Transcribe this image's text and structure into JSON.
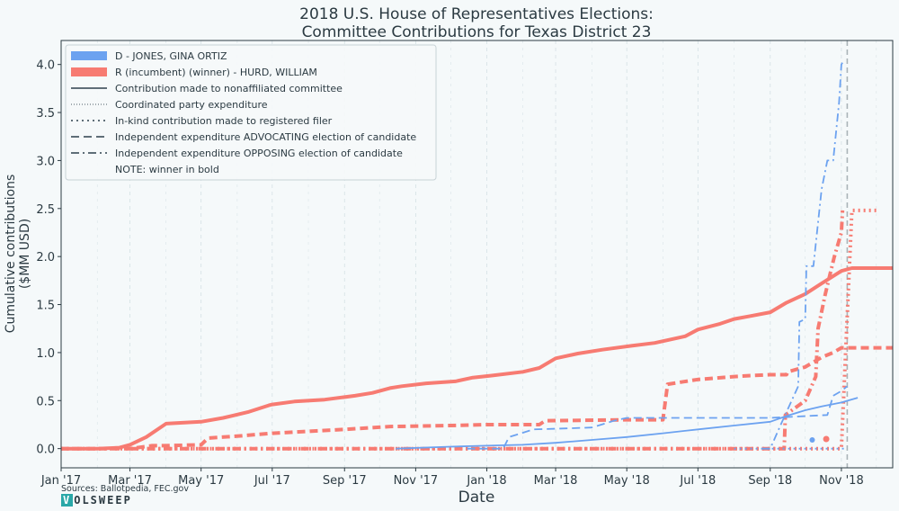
{
  "chart_data": {
    "type": "line",
    "title": [
      "2018 U.S. House of Representatives Elections:",
      "Committee Contributions for Texas District 23"
    ],
    "xlabel": "Date",
    "ylabel": [
      "Cumulative contributions",
      "($MM USD)"
    ],
    "ylim": [
      -0.2,
      4.25
    ],
    "yticks": [
      "0.0",
      "0.5",
      "1.0",
      "1.5",
      "2.0",
      "2.5",
      "3.0",
      "3.5",
      "4.0"
    ],
    "xlim": [
      "2017-01-01",
      "2018-12-15"
    ],
    "xticks": [
      {
        "date": "2017-01-01",
        "label": "Jan '17"
      },
      {
        "date": "2017-03-01",
        "label": "Mar '17"
      },
      {
        "date": "2017-05-01",
        "label": "May '17"
      },
      {
        "date": "2017-07-01",
        "label": "Jul '17"
      },
      {
        "date": "2017-09-01",
        "label": "Sep '17"
      },
      {
        "date": "2017-11-01",
        "label": "Nov '17"
      },
      {
        "date": "2018-01-01",
        "label": "Jan '18"
      },
      {
        "date": "2018-03-01",
        "label": "Mar '18"
      },
      {
        "date": "2018-05-01",
        "label": "May '18"
      },
      {
        "date": "2018-07-01",
        "label": "Jul '18"
      },
      {
        "date": "2018-09-01",
        "label": "Sep '18"
      },
      {
        "date": "2018-11-01",
        "label": "Nov '18"
      }
    ],
    "election_day": "2018-11-06",
    "grid": true,
    "legend_position": "top-left",
    "legend": [
      {
        "label": "D - JONES, GINA ORTIZ",
        "kind": "patch",
        "color": "#6ca2f0"
      },
      {
        "label": "R (incumbent) (winner) - HURD, WILLIAM",
        "kind": "patch",
        "color": "#f77b72"
      },
      {
        "label": "Contribution made to nonaffiliated committee",
        "kind": "line",
        "dash": "solid"
      },
      {
        "label": "Coordinated party expenditure",
        "kind": "line",
        "dash": "dotted-fine"
      },
      {
        "label": "In-kind contribution made to registered filer",
        "kind": "line",
        "dash": "dotted"
      },
      {
        "label": "Independent expenditure ADVOCATING election of candidate",
        "kind": "line",
        "dash": "dashed"
      },
      {
        "label": "Independent expenditure OPPOSING election of candidate",
        "kind": "line",
        "dash": "dashdot"
      },
      {
        "label": "NOTE: winner in bold",
        "kind": "text"
      }
    ],
    "colors": {
      "D": "#6ca2f0",
      "R": "#f77b72",
      "axis": "#2b3a42",
      "grid": "#d4e0e4",
      "election": "#aab4b8"
    },
    "series": [
      {
        "candidate": "R",
        "category": "Contribution made to nonaffiliated committee",
        "dash": "solid",
        "bold": true,
        "x": [
          "2017-01-01",
          "2017-02-01",
          "2017-02-20",
          "2017-03-01",
          "2017-03-15",
          "2017-04-01",
          "2017-05-01",
          "2017-05-20",
          "2017-06-10",
          "2017-06-28",
          "2017-07-01",
          "2017-07-20",
          "2017-08-15",
          "2017-09-10",
          "2017-09-25",
          "2017-10-10",
          "2017-10-20",
          "2017-11-10",
          "2017-12-05",
          "2017-12-20",
          "2018-01-05",
          "2018-02-01",
          "2018-02-15",
          "2018-03-01",
          "2018-03-20",
          "2018-04-10",
          "2018-05-05",
          "2018-05-25",
          "2018-06-20",
          "2018-07-01",
          "2018-07-20",
          "2018-08-01",
          "2018-08-15",
          "2018-09-01",
          "2018-09-15",
          "2018-10-01",
          "2018-10-15",
          "2018-11-01",
          "2018-11-10",
          "2018-12-15"
        ],
        "y": [
          0.0,
          0.0,
          0.01,
          0.04,
          0.12,
          0.26,
          0.28,
          0.32,
          0.38,
          0.45,
          0.46,
          0.49,
          0.51,
          0.55,
          0.58,
          0.63,
          0.65,
          0.68,
          0.7,
          0.74,
          0.76,
          0.8,
          0.84,
          0.94,
          0.99,
          1.03,
          1.07,
          1.1,
          1.17,
          1.24,
          1.3,
          1.35,
          1.38,
          1.42,
          1.52,
          1.61,
          1.72,
          1.85,
          1.88,
          1.88
        ]
      },
      {
        "candidate": "R",
        "category": "Independent expenditure ADVOCATING election of candidate",
        "dash": "dashed",
        "bold": true,
        "x": [
          "2017-01-01",
          "2017-03-01",
          "2017-03-20",
          "2017-04-01",
          "2017-05-01",
          "2017-05-07",
          "2017-06-01",
          "2017-07-01",
          "2017-09-01",
          "2017-10-10",
          "2017-12-01",
          "2018-01-01",
          "2018-02-15",
          "2018-02-20",
          "2018-05-01",
          "2018-06-01",
          "2018-06-05",
          "2018-07-01",
          "2018-08-01",
          "2018-08-15",
          "2018-09-01",
          "2018-09-15",
          "2018-09-16",
          "2018-10-01",
          "2018-10-15",
          "2018-10-25",
          "2018-11-01",
          "2018-12-15"
        ],
        "y": [
          0.0,
          0.0,
          0.03,
          0.03,
          0.04,
          0.11,
          0.13,
          0.16,
          0.2,
          0.23,
          0.24,
          0.25,
          0.25,
          0.29,
          0.3,
          0.3,
          0.67,
          0.72,
          0.75,
          0.76,
          0.77,
          0.77,
          0.8,
          0.85,
          0.95,
          1.0,
          1.05,
          1.05
        ]
      },
      {
        "candidate": "R",
        "category": "Independent expenditure OPPOSING election of candidate",
        "dash": "dashdot",
        "bold": true,
        "x": [
          "2017-03-01",
          "2018-09-13",
          "2018-09-14",
          "2018-10-01",
          "2018-10-10",
          "2018-10-12",
          "2018-10-18",
          "2018-10-22",
          "2018-10-26",
          "2018-11-01",
          "2018-11-02"
        ],
        "y": [
          0.0,
          0.0,
          0.35,
          0.5,
          0.75,
          1.25,
          1.6,
          1.8,
          2.0,
          2.25,
          2.48
        ]
      },
      {
        "candidate": "R",
        "category": "In-kind contribution made to registered filer",
        "dash": "dotted",
        "bold": true,
        "x": [
          "2017-01-01",
          "2018-10-01",
          "2018-11-01",
          "2018-11-10",
          "2018-12-01"
        ],
        "y": [
          0.0,
          0.0,
          0.0,
          2.48,
          2.48
        ]
      },
      {
        "candidate": "R",
        "category": "Coordinated party expenditure",
        "dash": "dotted-fine",
        "bold": true,
        "x": [
          "2018-10-19"
        ],
        "y": [
          0.1
        ]
      },
      {
        "candidate": "D",
        "category": "Contribution made to nonaffiliated committee",
        "dash": "solid",
        "bold": false,
        "x": [
          "2017-10-15",
          "2017-12-01",
          "2018-01-01",
          "2018-02-01",
          "2018-03-01",
          "2018-04-01",
          "2018-05-01",
          "2018-06-01",
          "2018-07-01",
          "2018-08-01",
          "2018-09-01",
          "2018-09-15",
          "2018-10-01",
          "2018-10-15",
          "2018-11-01",
          "2018-11-15"
        ],
        "y": [
          0.0,
          0.02,
          0.03,
          0.04,
          0.06,
          0.09,
          0.12,
          0.16,
          0.2,
          0.24,
          0.28,
          0.34,
          0.4,
          0.44,
          0.48,
          0.53
        ]
      },
      {
        "candidate": "D",
        "category": "Independent expenditure ADVOCATING election of candidate",
        "dash": "dashed",
        "bold": false,
        "x": [
          "2017-12-15",
          "2018-01-15",
          "2018-01-20",
          "2018-02-10",
          "2018-03-10",
          "2018-04-01",
          "2018-04-20",
          "2018-05-01",
          "2018-06-15",
          "2018-09-01",
          "2018-10-20",
          "2018-10-25",
          "2018-11-01",
          "2018-11-06"
        ],
        "y": [
          0.0,
          0.0,
          0.12,
          0.2,
          0.21,
          0.22,
          0.29,
          0.32,
          0.32,
          0.32,
          0.35,
          0.55,
          0.6,
          0.65
        ]
      },
      {
        "candidate": "D",
        "category": "Independent expenditure OPPOSING election of candidate",
        "dash": "dashdot",
        "bold": false,
        "x": [
          "2018-08-25",
          "2018-09-01",
          "2018-09-10",
          "2018-09-25",
          "2018-09-26",
          "2018-10-01",
          "2018-10-02",
          "2018-10-08",
          "2018-10-15",
          "2018-10-20",
          "2018-10-25",
          "2018-10-30",
          "2018-11-01",
          "2018-11-02"
        ],
        "y": [
          0.0,
          0.0,
          0.25,
          0.65,
          1.32,
          1.35,
          1.9,
          1.9,
          2.7,
          3.0,
          3.0,
          3.6,
          4.0,
          4.02
        ]
      },
      {
        "candidate": "D",
        "category": "Coordinated party expenditure",
        "dash": "dotted-fine",
        "bold": false,
        "x": [
          "2018-10-07"
        ],
        "y": [
          0.09
        ]
      },
      {
        "candidate": "D",
        "category": "In-kind contribution made to registered filer",
        "dash": "dotted",
        "bold": false,
        "x": [
          "2018-08-01",
          "2018-11-06"
        ],
        "y": [
          0.0,
          0.0
        ]
      }
    ]
  },
  "footer": {
    "sources": "Sources: Ballotpedia, FEC.gov",
    "brand_v": "V",
    "brand_rest": "OLSWEEP"
  }
}
